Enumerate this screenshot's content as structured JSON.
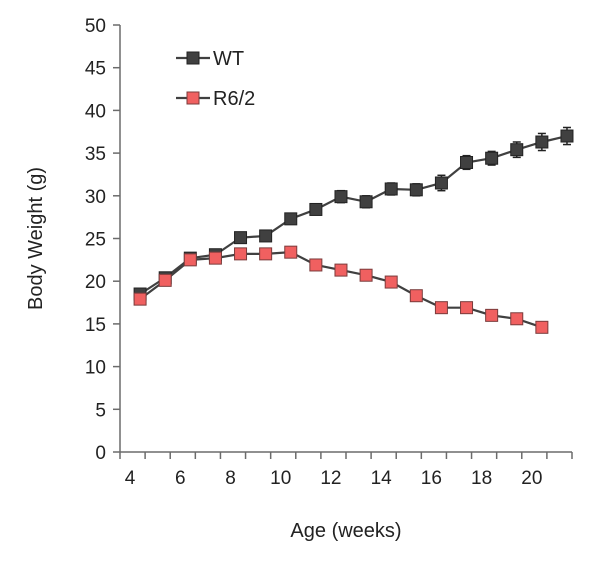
{
  "chart_data": {
    "type": "line",
    "title": "",
    "xlabel": "Age (weeks)",
    "ylabel": "Body Weight (g)",
    "xlim": [
      3.6,
      21.6
    ],
    "ylim": [
      0,
      50
    ],
    "xticks": [
      4,
      6,
      8,
      10,
      12,
      14,
      16,
      18,
      20
    ],
    "yticks": [
      0,
      5,
      10,
      15,
      20,
      25,
      30,
      35,
      40,
      45,
      50
    ],
    "grid": false,
    "legend_position": "top-left",
    "series": [
      {
        "name": "WT",
        "marker_color": "#404040",
        "line_color": "#404040",
        "marker_edge": "#222222",
        "x": [
          4.4,
          5.4,
          6.4,
          7.4,
          8.4,
          9.4,
          10.4,
          11.4,
          12.4,
          13.4,
          14.4,
          15.4,
          16.4,
          17.4,
          18.4,
          19.4,
          20.4,
          21.4
        ],
        "y": [
          18.5,
          20.4,
          22.7,
          23.1,
          25.1,
          25.3,
          27.3,
          28.4,
          29.9,
          29.3,
          30.8,
          30.7,
          31.5,
          33.9,
          34.4,
          35.4,
          36.3,
          37.0
        ],
        "error": [
          0.4,
          0.4,
          0.4,
          0.5,
          0.5,
          0.5,
          0.6,
          0.6,
          0.7,
          0.7,
          0.7,
          0.7,
          0.9,
          0.8,
          0.8,
          0.9,
          1.0,
          1.0
        ]
      },
      {
        "name": "R6/2",
        "marker_color": "#f06060",
        "line_color": "#404040",
        "marker_edge": "#7a3b3b",
        "x": [
          4.4,
          5.4,
          6.4,
          7.4,
          8.4,
          9.4,
          10.4,
          11.4,
          12.4,
          13.4,
          14.4,
          15.4,
          16.4,
          17.4,
          18.4,
          19.4,
          20.4
        ],
        "y": [
          17.9,
          20.1,
          22.5,
          22.7,
          23.2,
          23.2,
          23.4,
          21.9,
          21.3,
          20.7,
          19.9,
          18.3,
          16.9,
          16.9,
          16.0,
          15.6,
          14.6
        ],
        "error": [
          0.3,
          0.3,
          0.3,
          0.3,
          0.3,
          0.3,
          0.3,
          0.3,
          0.3,
          0.3,
          0.3,
          0.3,
          0.3,
          0.3,
          0.3,
          0.3,
          0.3
        ]
      }
    ]
  }
}
